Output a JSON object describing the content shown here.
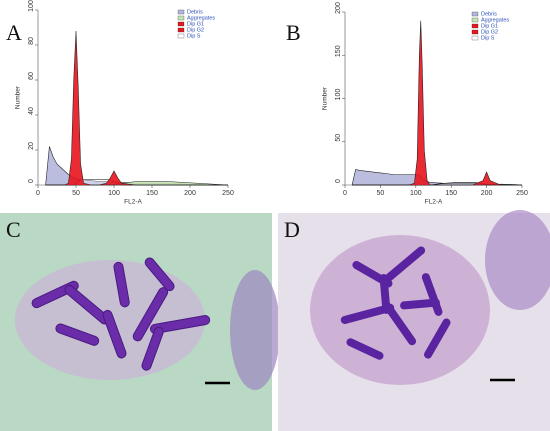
{
  "panel_labels": [
    "A",
    "B",
    "C",
    "D"
  ],
  "chart_data": [
    {
      "type": "area",
      "xlabel": "FL2-A",
      "ylabel": "Number",
      "legend": "upper right",
      "xlim": [
        0,
        250
      ],
      "xticks": [
        0,
        50,
        100,
        150,
        200,
        250
      ],
      "ylim": [
        0,
        100
      ],
      "yticks": [
        0,
        20,
        40,
        60,
        80,
        100
      ],
      "x": [
        10,
        15,
        20,
        25,
        30,
        35,
        40,
        44,
        47,
        50,
        53,
        56,
        60,
        70,
        80,
        90,
        95,
        100,
        105,
        110,
        130,
        150,
        170,
        190,
        210,
        230,
        250
      ],
      "series": [
        {
          "name": "Debris",
          "color": "#b4b6dc",
          "values": [
            0,
            22,
            16,
            12,
            10,
            8,
            6,
            5,
            4,
            4,
            3,
            3,
            3,
            2.5,
            2,
            2,
            2,
            2,
            1.5,
            1.5,
            1,
            1,
            1,
            0.5,
            0.5,
            0,
            0
          ]
        },
        {
          "name": "Aggregates",
          "color": "#c6e4b2",
          "values": [
            0,
            0,
            0,
            0,
            0,
            0,
            0,
            0,
            0,
            0,
            0,
            0,
            0,
            0,
            0,
            0,
            0,
            0,
            0,
            1,
            2,
            2,
            2,
            1.5,
            1,
            0.5,
            0
          ]
        },
        {
          "name": "Dip G1",
          "color": "#e8141e",
          "values": [
            0,
            0,
            0,
            0,
            0,
            0,
            1,
            15,
            60,
            88,
            55,
            12,
            1,
            0,
            0,
            0,
            0,
            0,
            0,
            0,
            0,
            0,
            0,
            0,
            0,
            0,
            0
          ]
        },
        {
          "name": "Dip G2",
          "color": "#e8141e",
          "values": [
            0,
            0,
            0,
            0,
            0,
            0,
            0,
            0,
            0,
            0,
            0,
            0,
            0,
            0,
            0,
            1,
            4,
            8,
            4,
            1,
            0,
            0,
            0,
            0,
            0,
            0,
            0
          ]
        },
        {
          "name": "Dip S",
          "color": "#ffffff",
          "values": [
            0,
            0,
            0,
            0,
            0,
            0,
            0,
            0,
            0,
            1,
            2,
            3,
            3,
            3,
            3,
            3,
            3,
            2,
            1,
            0,
            0,
            0,
            0,
            0,
            0,
            0,
            0
          ]
        }
      ]
    },
    {
      "type": "area",
      "xlabel": "FL2-A",
      "ylabel": "Number",
      "legend": "upper right",
      "xlim": [
        0,
        250
      ],
      "xticks": [
        0,
        50,
        100,
        150,
        200,
        250
      ],
      "ylim": [
        0,
        200
      ],
      "yticks": [
        0,
        50,
        100,
        150,
        200
      ],
      "x": [
        10,
        15,
        20,
        30,
        40,
        50,
        60,
        70,
        80,
        90,
        98,
        102,
        105,
        107,
        109,
        112,
        116,
        120,
        140,
        160,
        180,
        195,
        200,
        205,
        220,
        240,
        250
      ],
      "series": [
        {
          "name": "Debris",
          "color": "#b4b6dc",
          "values": [
            0,
            18,
            17,
            16,
            15,
            14,
            13,
            12,
            12,
            12,
            12,
            12,
            12,
            10,
            8,
            6,
            4,
            3,
            2,
            2,
            2,
            1,
            1,
            1,
            0.5,
            0,
            0
          ]
        },
        {
          "name": "Aggregates",
          "color": "#c6e4b2",
          "values": [
            0,
            0,
            0,
            0,
            0,
            0,
            0,
            0,
            0,
            0,
            0,
            0,
            0,
            0,
            0,
            0,
            0,
            0,
            0,
            0,
            0,
            0,
            0,
            0,
            1,
            0.5,
            0
          ]
        },
        {
          "name": "Dip G1",
          "color": "#e8141e",
          "values": [
            0,
            0,
            0,
            0,
            0,
            0,
            0,
            0,
            0,
            0,
            2,
            30,
            150,
            190,
            140,
            40,
            5,
            0,
            0,
            0,
            0,
            0,
            0,
            0,
            0,
            0,
            0
          ]
        },
        {
          "name": "Dip G2",
          "color": "#e8141e",
          "values": [
            0,
            0,
            0,
            0,
            0,
            0,
            0,
            0,
            0,
            0,
            0,
            0,
            0,
            0,
            0,
            0,
            0,
            0,
            0,
            0,
            0,
            5,
            15,
            5,
            0,
            0,
            0
          ]
        },
        {
          "name": "Dip S",
          "color": "#ffffff",
          "values": [
            0,
            0,
            0,
            0,
            0,
            0,
            0,
            0,
            0,
            0,
            0,
            0,
            0,
            0,
            0,
            0,
            0,
            0,
            2,
            3,
            3,
            2,
            0,
            0,
            0,
            0,
            0
          ]
        }
      ]
    }
  ]
}
